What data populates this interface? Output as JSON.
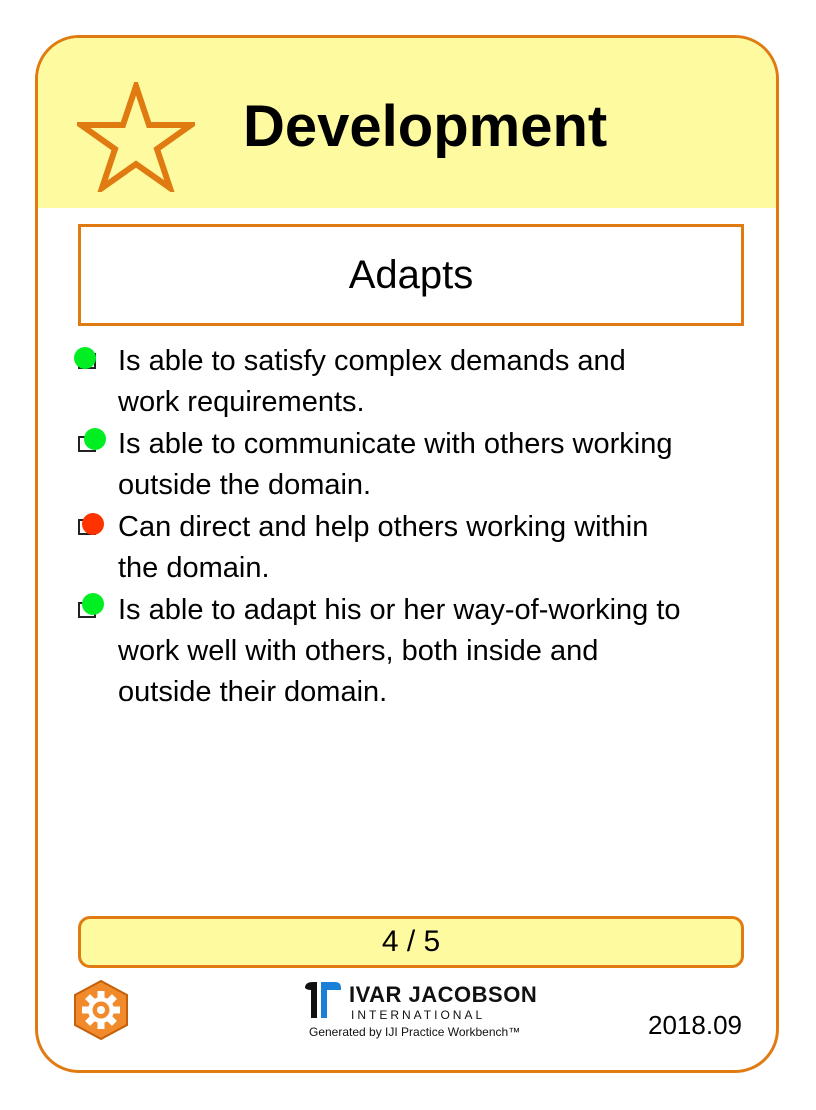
{
  "card": {
    "title": "Development",
    "state_name": "Adapts",
    "progress": "4 / 5",
    "date": "2018.09",
    "icon": "star-icon",
    "colors": {
      "border": "#e07b12",
      "header_bg": "#fefaa0",
      "done": "#00ee22",
      "not_done": "#ff3300"
    }
  },
  "checklist": [
    {
      "text_line1": "Is able to satisfy complex demands and",
      "text_line2": "work requirements.",
      "text_line3": "",
      "status": "done"
    },
    {
      "text_line1": "Is able to communicate with others working",
      "text_line2": "outside the domain.",
      "text_line3": "",
      "status": "done"
    },
    {
      "text_line1": "Can direct and help others working within",
      "text_line2": "the domain.",
      "text_line3": "",
      "status": "not_done"
    },
    {
      "text_line1": "Is able to adapt his or her way-of-working to",
      "text_line2": "work well with others, both inside and",
      "text_line3": "outside their domain.",
      "status": "done"
    }
  ],
  "footer": {
    "logo_name": "IVAR JACOBSON",
    "logo_sub": "INTERNATIONAL",
    "generated_by": "Generated by IJI Practice Workbench™",
    "gear_icon": "gear-icon"
  }
}
